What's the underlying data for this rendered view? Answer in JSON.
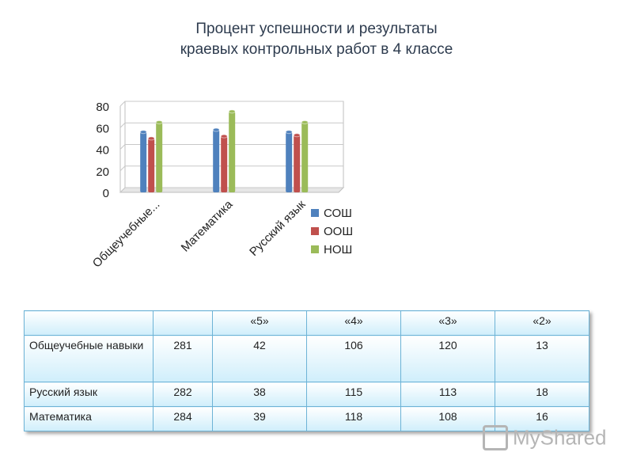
{
  "title_lines": [
    "Процент успешности  и результаты",
    "краевых контрольных работ в 4 классе"
  ],
  "chart_data": {
    "type": "bar",
    "categories": [
      "Общеучебные...",
      "Математика",
      "Русский язык"
    ],
    "series": [
      {
        "name": "СОШ",
        "values": [
          56,
          58,
          56
        ],
        "color": "#4f81bd"
      },
      {
        "name": "ООШ",
        "values": [
          50,
          52,
          53
        ],
        "color": "#c0504d"
      },
      {
        "name": "НОШ",
        "values": [
          65,
          75,
          65
        ],
        "color": "#9bbb59"
      }
    ],
    "ylim": [
      0,
      80
    ],
    "yticks": [
      0,
      20,
      40,
      60,
      80
    ],
    "grid": true,
    "legend": "right"
  },
  "table": {
    "header": [
      "",
      "",
      "«5»",
      "«4»",
      "«3»",
      "«2»"
    ],
    "rows": [
      [
        "Общеучебные навыки",
        "281",
        "42",
        "106",
        "120",
        "13"
      ],
      [
        "Русский язык",
        "282",
        "38",
        "115",
        "113",
        "18"
      ],
      [
        "Математика",
        "284",
        "39",
        "118",
        "108",
        "16"
      ]
    ]
  },
  "watermark": "MyShared"
}
